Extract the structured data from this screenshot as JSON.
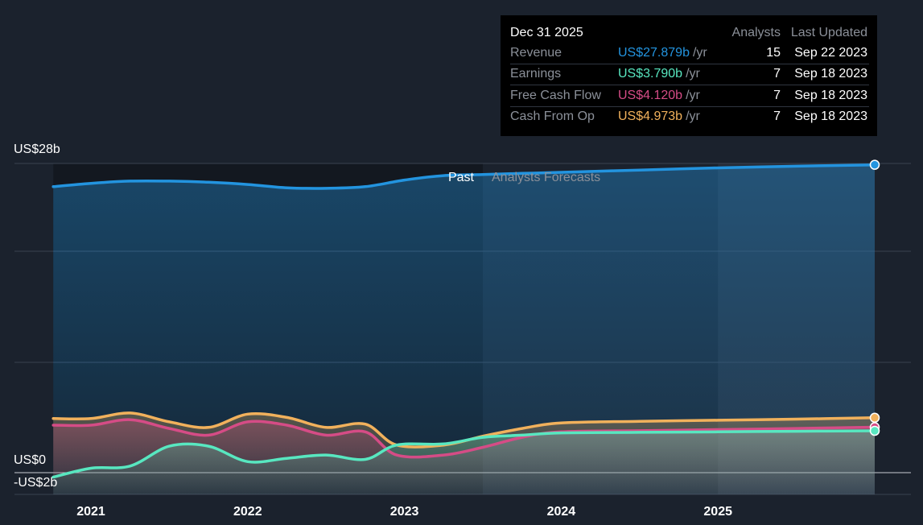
{
  "tooltip": {
    "date": "Dec 31 2025",
    "analysts_header": "Analysts",
    "updated_header": "Last Updated",
    "rows": [
      {
        "label": "Revenue",
        "value": "US$27.879b",
        "unit": "/yr",
        "analysts": "15",
        "updated": "Sep 22 2023",
        "color": "#2394df"
      },
      {
        "label": "Earnings",
        "value": "US$3.790b",
        "unit": "/yr",
        "analysts": "7",
        "updated": "Sep 18 2023",
        "color": "#58e7c0"
      },
      {
        "label": "Free Cash Flow",
        "value": "US$4.120b",
        "unit": "/yr",
        "analysts": "7",
        "updated": "Sep 18 2023",
        "color": "#d54c86"
      },
      {
        "label": "Cash From Op",
        "value": "US$4.973b",
        "unit": "/yr",
        "analysts": "7",
        "updated": "Sep 18 2023",
        "color": "#f1b15c"
      }
    ]
  },
  "chart_data": {
    "type": "line",
    "y_labels": [
      "US$28b",
      "US$0",
      "-US$2b"
    ],
    "x_ticks": [
      "2021",
      "2022",
      "2023",
      "2024",
      "2025"
    ],
    "ylim": [
      -2,
      28
    ],
    "x_range": [
      2020.5,
      2026.2
    ],
    "past_label": "Past",
    "forecast_label": "Analysts Forecasts",
    "past_start": 2020.76,
    "past_end": 2023.5,
    "forecast_split": 2025.0,
    "series_end": 2026.0,
    "grid": true,
    "series": [
      {
        "name": "Revenue",
        "color": "#2394df",
        "x": [
          2020.76,
          2021.0,
          2021.25,
          2021.5,
          2021.75,
          2022.0,
          2022.25,
          2022.5,
          2022.75,
          2023.0,
          2023.25,
          2023.5,
          2023.75,
          2024.0,
          2024.5,
          2025.0,
          2025.5,
          2026.0
        ],
        "y": [
          25.9,
          26.2,
          26.4,
          26.4,
          26.3,
          26.1,
          25.8,
          25.75,
          25.9,
          26.5,
          26.9,
          27.0,
          27.1,
          27.2,
          27.4,
          27.6,
          27.75,
          27.879
        ]
      },
      {
        "name": "Cash From Op",
        "color": "#f1b15c",
        "x": [
          2020.76,
          2021.0,
          2021.25,
          2021.5,
          2021.75,
          2022.0,
          2022.25,
          2022.5,
          2022.75,
          2022.95,
          2023.25,
          2023.5,
          2023.75,
          2024.0,
          2024.5,
          2025.0,
          2025.5,
          2026.0
        ],
        "y": [
          4.9,
          4.9,
          5.4,
          4.6,
          4.1,
          5.3,
          5.0,
          4.1,
          4.4,
          2.5,
          2.5,
          3.3,
          4.0,
          4.5,
          4.65,
          4.75,
          4.85,
          4.973
        ]
      },
      {
        "name": "Free Cash Flow",
        "color": "#d54c86",
        "x": [
          2020.76,
          2021.0,
          2021.25,
          2021.5,
          2021.75,
          2022.0,
          2022.25,
          2022.5,
          2022.75,
          2022.95,
          2023.25,
          2023.5,
          2023.75,
          2024.0,
          2024.5,
          2025.0,
          2025.5,
          2026.0
        ],
        "y": [
          4.3,
          4.3,
          4.8,
          4.0,
          3.4,
          4.6,
          4.3,
          3.4,
          3.7,
          1.6,
          1.6,
          2.3,
          3.2,
          3.7,
          3.8,
          3.9,
          4.0,
          4.12
        ]
      },
      {
        "name": "Earnings",
        "color": "#58e7c0",
        "x": [
          2020.76,
          2021.0,
          2021.25,
          2021.5,
          2021.75,
          2022.0,
          2022.25,
          2022.5,
          2022.75,
          2022.95,
          2023.25,
          2023.5,
          2023.75,
          2024.0,
          2024.5,
          2025.0,
          2025.5,
          2026.0
        ],
        "y": [
          -0.4,
          0.4,
          0.6,
          2.4,
          2.4,
          1.0,
          1.3,
          1.6,
          1.2,
          2.5,
          2.6,
          3.2,
          3.4,
          3.6,
          3.65,
          3.7,
          3.75,
          3.79
        ]
      }
    ]
  }
}
